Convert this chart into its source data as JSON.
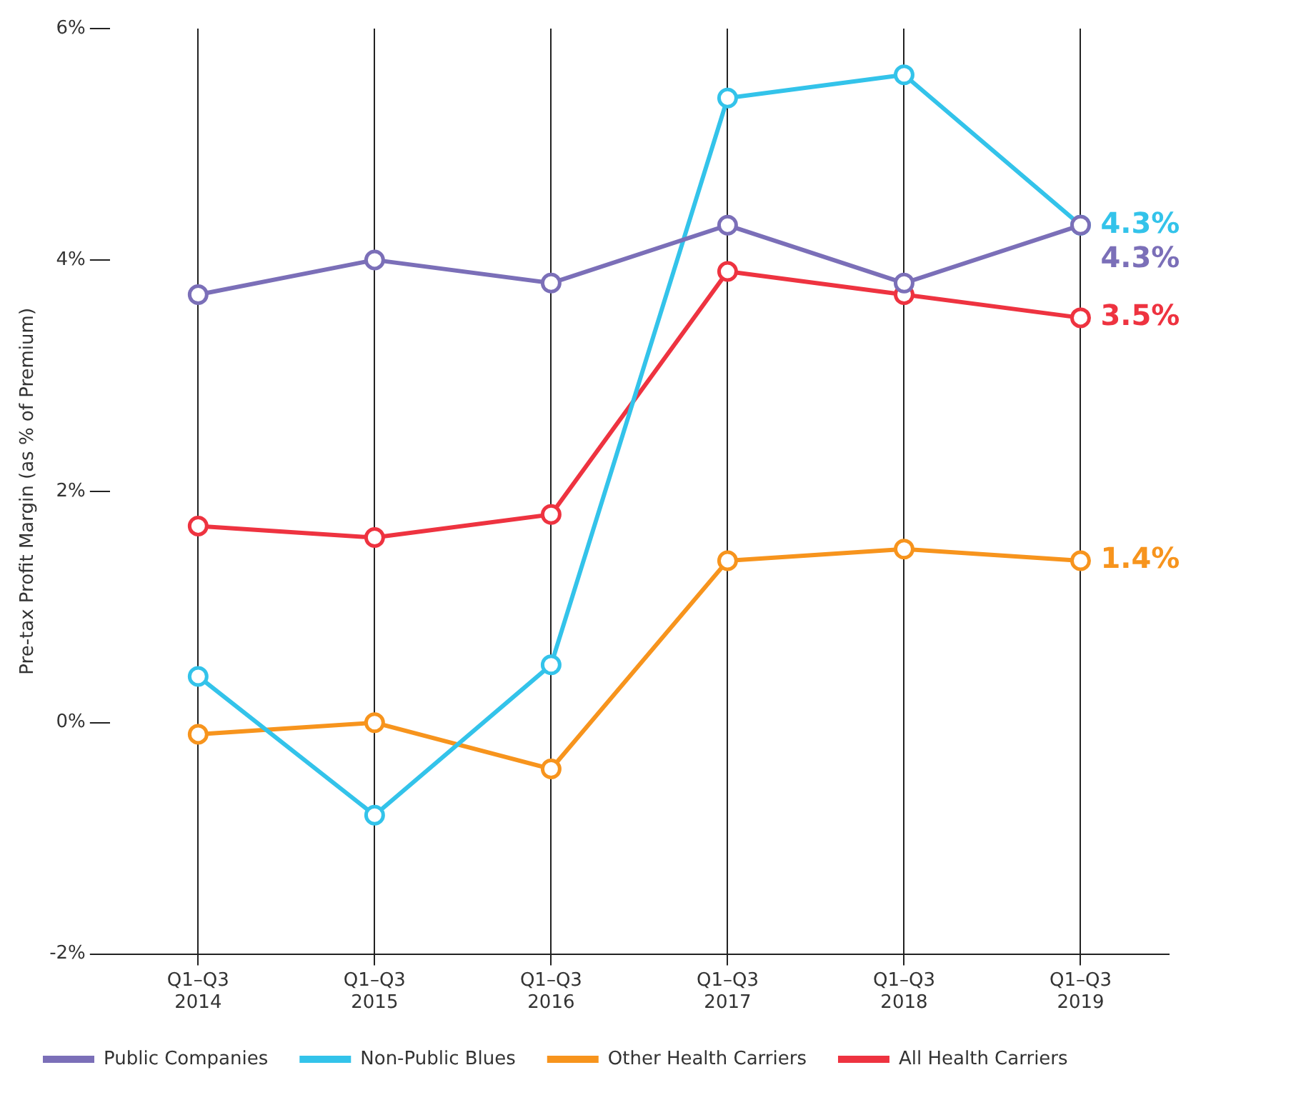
{
  "chart_data": {
    "type": "line",
    "ylabel": "Pre-tax Profit Margin (as % of Premium)",
    "categories": [
      "Q1–Q3 2014",
      "Q1–Q3 2015",
      "Q1–Q3 2016",
      "Q1–Q3 2017",
      "Q1–Q3 2018",
      "Q1–Q3 2019"
    ],
    "series": [
      {
        "name": "Public Companies",
        "color": "#7b6fb8",
        "values": [
          3.7,
          4.0,
          3.8,
          4.3,
          3.8,
          4.3
        ],
        "value_labels": [
          null,
          null,
          null,
          null,
          null,
          "4.3%"
        ]
      },
      {
        "name": "Non-Public Blues",
        "color": "#33c3ea",
        "values": [
          0.4,
          -0.8,
          0.5,
          5.4,
          5.6,
          4.3
        ],
        "value_labels": [
          null,
          null,
          null,
          null,
          null,
          "4.3%"
        ]
      },
      {
        "name": "Other Health Carriers",
        "color": "#f7941d",
        "values": [
          -0.1,
          0,
          -0.4,
          1.4,
          1.5,
          1.4
        ],
        "value_labels": [
          null,
          null,
          null,
          null,
          null,
          "1.4%"
        ]
      },
      {
        "name": "All Health Carriers",
        "color": "#ee3340",
        "values": [
          1.7,
          1.6,
          1.8,
          3.9,
          3.7,
          3.5
        ],
        "value_labels": [
          null,
          null,
          null,
          null,
          null,
          "3.5%"
        ]
      }
    ],
    "ylim": [
      -2,
      6
    ],
    "yticks": [
      {
        "value": -2,
        "label": "-2%"
      },
      {
        "value": 0,
        "label": "0%"
      },
      {
        "value": 2,
        "label": "2%"
      },
      {
        "value": 4,
        "label": "4%"
      },
      {
        "value": 6,
        "label": "6%"
      }
    ],
    "grid": "x",
    "legend": "bottom",
    "marker": "circle",
    "line_style": "solid"
  }
}
